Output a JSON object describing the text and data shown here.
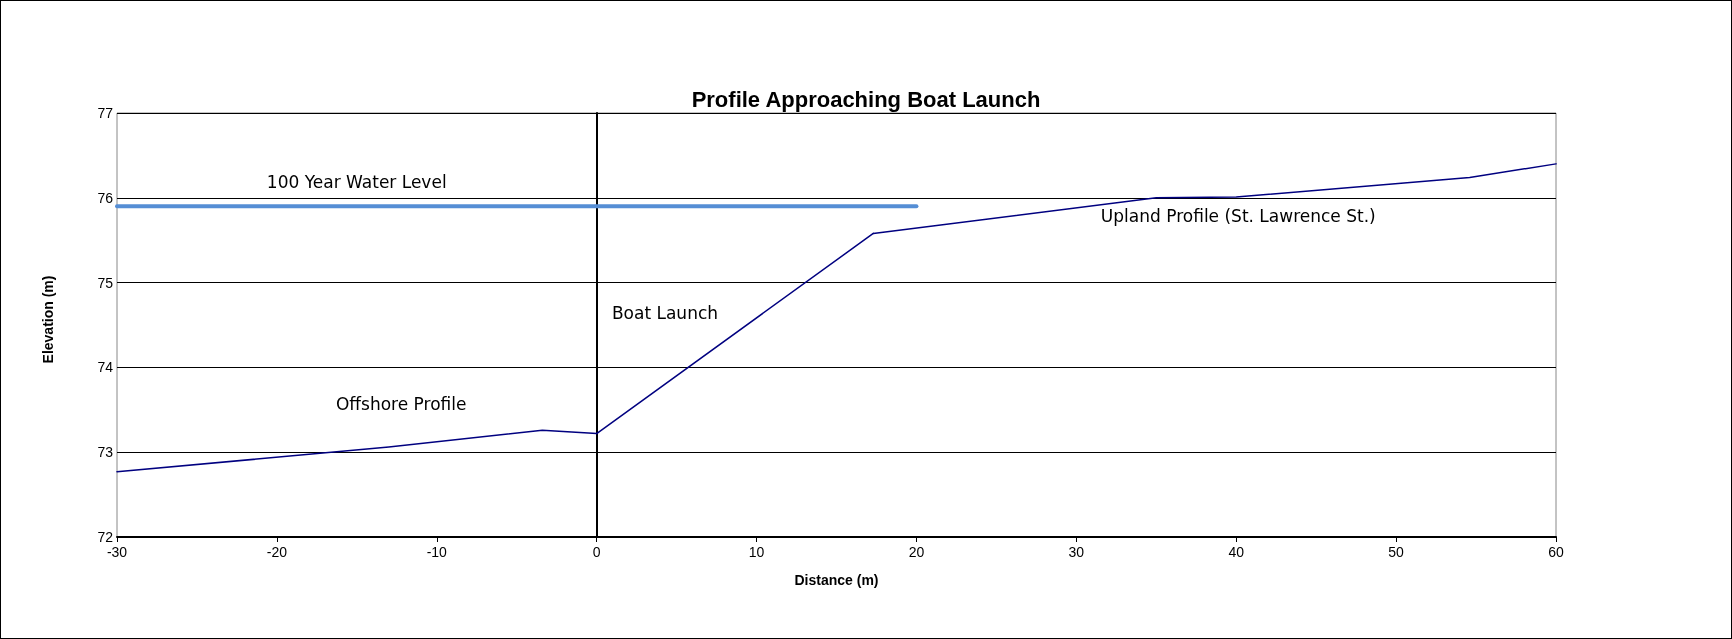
{
  "chart_data": {
    "type": "line",
    "title": "Profile Approaching Boat Launch",
    "xlabel": "Distance (m)",
    "ylabel": "Elevation (m)",
    "series": [
      {
        "name": "100 Year Water Level",
        "color": "#558ed5",
        "x": [
          -30,
          20
        ],
        "values": [
          75.9,
          75.9
        ]
      },
      {
        "name": "Offshore Profile",
        "color": "#000080",
        "x": [
          -30,
          -13,
          -3.4,
          0
        ],
        "values": [
          72.77,
          73.06,
          73.26,
          73.22
        ]
      },
      {
        "name": "Boat Launch",
        "color": "#000080",
        "x": [
          0,
          17.3
        ],
        "values": [
          73.22,
          75.58
        ]
      },
      {
        "name": "Upland Profile (St. Lawrence St.)",
        "color": "#000080",
        "x": [
          17.3,
          35,
          40,
          54.6,
          60
        ],
        "values": [
          75.58,
          76.0,
          76.01,
          76.24,
          76.4
        ]
      }
    ],
    "xlim": [
      -30,
      60
    ],
    "xticks": [
      -30,
      -20,
      -10,
      0,
      10,
      20,
      30,
      40,
      50,
      60
    ],
    "ylim": [
      72,
      77
    ],
    "yticks": [
      72,
      73,
      74,
      75,
      76,
      77
    ],
    "grid": "y",
    "legend": false,
    "marker": "none",
    "line_style": "solid"
  }
}
